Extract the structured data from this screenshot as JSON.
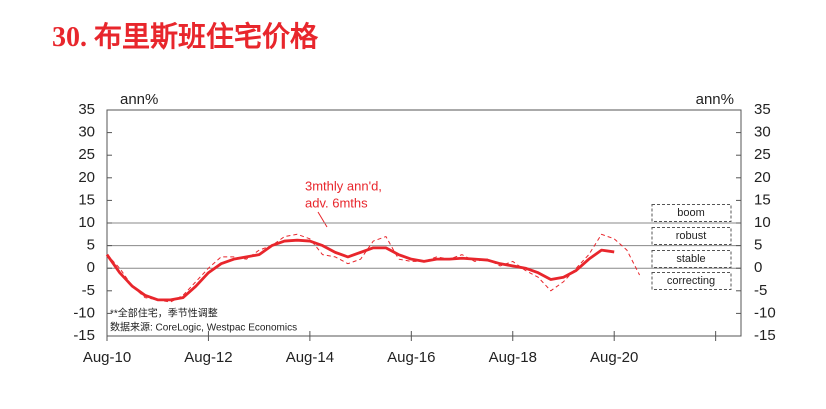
{
  "chart_data": {
    "type": "line",
    "title": "30. 布里斯班住宅价格",
    "y_unit_left": "ann%",
    "y_unit_right": "ann%",
    "x": [
      "2010-08",
      "2010-11",
      "2011-02",
      "2011-05",
      "2011-08",
      "2011-11",
      "2012-02",
      "2012-05",
      "2012-08",
      "2012-11",
      "2013-02",
      "2013-05",
      "2013-08",
      "2013-11",
      "2014-02",
      "2014-05",
      "2014-08",
      "2014-11",
      "2015-02",
      "2015-05",
      "2015-08",
      "2015-11",
      "2016-02",
      "2016-05",
      "2016-08",
      "2016-11",
      "2017-02",
      "2017-05",
      "2017-08",
      "2017-11",
      "2018-02",
      "2018-05",
      "2018-08",
      "2018-11",
      "2019-02",
      "2019-05",
      "2019-08",
      "2019-11",
      "2020-02",
      "2020-05",
      "2020-08",
      "2020-11",
      "2021-02"
    ],
    "series": [
      {
        "color": "#e8262c",
        "style": "solid",
        "values": [
          3,
          -1,
          -4,
          -6,
          -7,
          -7,
          -6.5,
          -4,
          -1,
          1,
          2,
          2.5,
          3,
          5,
          6,
          6.2,
          6,
          5,
          3.5,
          2.5,
          3.5,
          4.5,
          4.5,
          3,
          2,
          1.5,
          2,
          2,
          2.2,
          2,
          1.8,
          1,
          0.5,
          0,
          -1,
          -2.5,
          -2,
          -0.5,
          2,
          4,
          3.6,
          null,
          null
        ]
      },
      {
        "color": "#e8262c",
        "style": "dashed",
        "values": [
          3,
          0,
          -4,
          -6.5,
          -7,
          -7.5,
          -6,
          -3,
          0,
          2.5,
          2.5,
          2,
          4,
          5,
          7,
          7.5,
          6.5,
          3,
          2.5,
          1,
          2,
          6,
          7,
          2,
          1.5,
          1.5,
          2.5,
          2,
          3,
          1.5,
          2,
          0.5,
          1.5,
          -0.5,
          -2,
          -5,
          -3,
          0,
          3,
          7.5,
          6.5,
          4,
          -1.5
        ]
      }
    ],
    "xlim": [
      "2010-08",
      "2023-02"
    ],
    "xticks": [
      {
        "value": "2010-08",
        "label": "Aug-10"
      },
      {
        "value": "2012-08",
        "label": "Aug-12"
      },
      {
        "value": "2014-08",
        "label": "Aug-14"
      },
      {
        "value": "2016-08",
        "label": "Aug-16"
      },
      {
        "value": "2018-08",
        "label": "Aug-18"
      },
      {
        "value": "2020-08",
        "label": "Aug-20"
      },
      {
        "value": "2022-08",
        "label": null
      }
    ],
    "ylim": [
      -15,
      35
    ],
    "yticks": [
      -15,
      -10,
      -5,
      0,
      5,
      10,
      15,
      20,
      25,
      30,
      35
    ],
    "y2lim": [
      -15,
      35
    ],
    "y2ticks": [
      -15,
      -10,
      -5,
      0,
      5,
      10,
      15,
      20,
      25,
      30,
      35
    ],
    "reference_lines": [
      0,
      5,
      10
    ],
    "bands": [
      "boom",
      "robust",
      "stable",
      "correcting"
    ],
    "annotation": [
      "3mthly ann'd,",
      "adv. 6mths"
    ],
    "notes": [
      "**全部住宅，季节性调整",
      "数据来源: CoreLogic, Westpac Economics"
    ]
  }
}
